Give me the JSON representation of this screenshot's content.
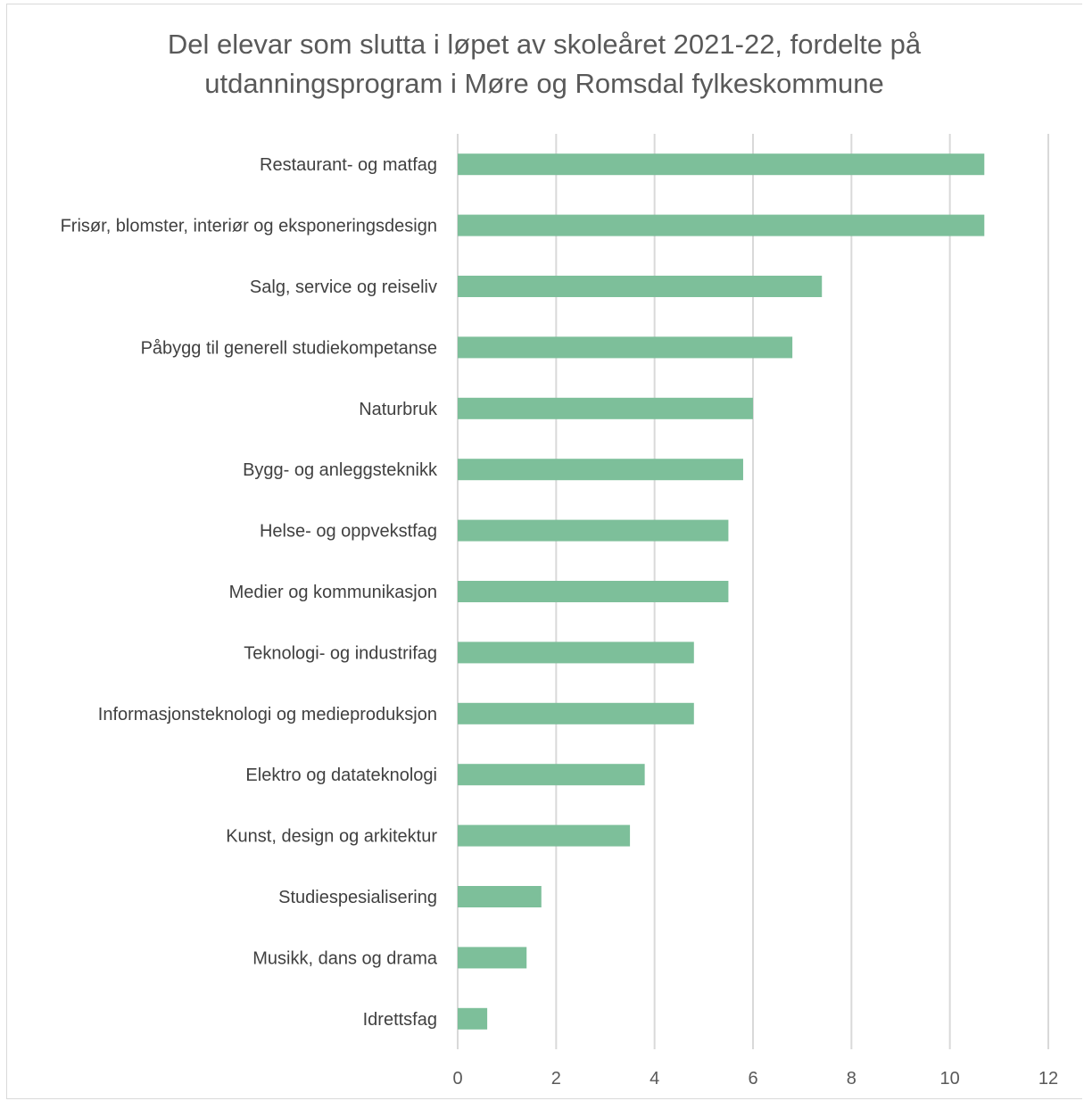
{
  "chart_data": {
    "type": "bar",
    "orientation": "horizontal",
    "title_lines": [
      "Del elevar som slutta i løpet av skoleåret 2021-22, fordelte på",
      "utdanningsprogram i Møre og Romsdal fylkeskommune"
    ],
    "categories": [
      "Restaurant- og matfag",
      "Frisør, blomster, interiør og eksponeringsdesign",
      "Salg, service og reiseliv",
      "Påbygg til generell studiekompetanse",
      "Naturbruk",
      "Bygg- og anleggsteknikk",
      "Helse- og oppvekstfag",
      "Medier og kommunikasjon",
      "Teknologi- og industrifag",
      "Informasjonsteknologi og medieproduksjon",
      "Elektro og datateknologi",
      "Kunst, design og arkitektur",
      "Studiespesialisering",
      "Musikk, dans og drama",
      "Idrettsfag"
    ],
    "values": [
      10.7,
      10.7,
      7.4,
      6.8,
      6.0,
      5.8,
      5.5,
      5.5,
      4.8,
      4.8,
      3.8,
      3.5,
      1.7,
      1.4,
      0.6
    ],
    "xlim": [
      0,
      12
    ],
    "xticks": [
      "0",
      "2",
      "4",
      "6",
      "8",
      "10",
      "12"
    ],
    "grid": "vertical",
    "bar_color": "#7dbf9a",
    "grid_color": "#d9d9d9",
    "legend": "none"
  }
}
